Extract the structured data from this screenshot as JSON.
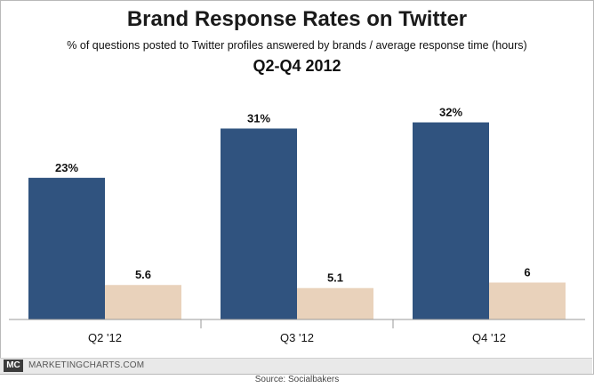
{
  "header": {
    "title": "Brand Response Rates on Twitter",
    "subtitle": "% of questions posted to Twitter profiles answered by brands / average response time (hours)",
    "period": "Q2-Q4 2012"
  },
  "footer": {
    "logo_text": "MC",
    "site": "MARKETINGCHARTS.COM",
    "source": "Source: Socialbakers"
  },
  "chart_data": {
    "type": "bar",
    "title": "Brand Response Rates on Twitter",
    "subtitle": "% of questions posted to Twitter profiles answered by brands / average response time (hours)",
    "categories": [
      "Q2 '12",
      "Q3 '12",
      "Q4 '12"
    ],
    "series": [
      {
        "values": [
          23,
          31,
          32
        ],
        "labels": [
          "23%",
          "31%",
          "32%"
        ],
        "color": "#30537f"
      },
      {
        "values": [
          5.6,
          5.1,
          6
        ],
        "labels": [
          "5.6",
          "5.1",
          "6"
        ],
        "color": "#e9d2bb"
      }
    ],
    "ylim": [
      0,
      38
    ],
    "grid": false,
    "legend": "none"
  }
}
